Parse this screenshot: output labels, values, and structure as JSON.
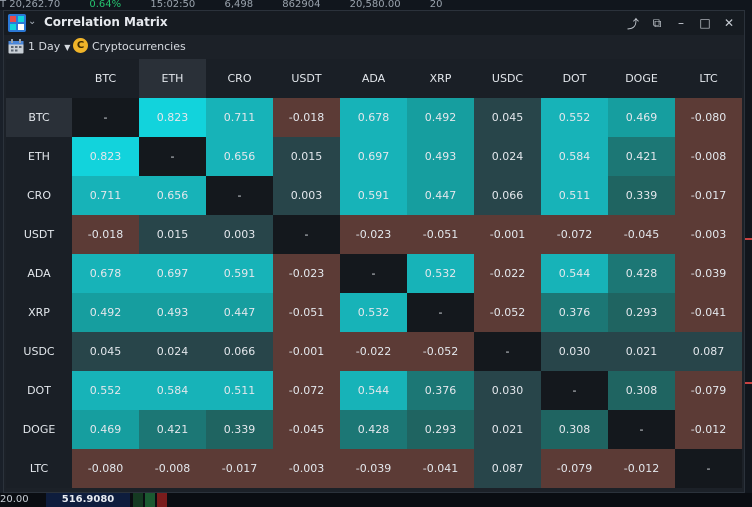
{
  "background": {
    "ticker_fragments": [
      "T 20,262.70",
      "0.64%",
      "15:02:50",
      "6,498",
      "862904",
      "20,580.00",
      "20"
    ],
    "bottom_left": "20.00",
    "bottom_price": "516.9080"
  },
  "window": {
    "title": "Correlation Matrix",
    "controls": {
      "share_symbol": "⤴",
      "popout_symbol": "⧉",
      "minimize_symbol": "–",
      "maximize_symbol": "□",
      "close_symbol": "✕"
    }
  },
  "toolbar": {
    "period": "1 Day",
    "category": "Cryptocurrencies",
    "coin_symbol": "C"
  },
  "matrix": {
    "highlight_column": "ETH",
    "highlight_row": "BTC",
    "assets": [
      "BTC",
      "ETH",
      "CRO",
      "USDT",
      "ADA",
      "XRP",
      "USDC",
      "DOT",
      "DOGE",
      "LTC"
    ],
    "values": [
      [
        "-",
        "0.823",
        "0.711",
        "-0.018",
        "0.678",
        "0.492",
        "0.045",
        "0.552",
        "0.469",
        "-0.080"
      ],
      [
        "0.823",
        "-",
        "0.656",
        "0.015",
        "0.697",
        "0.493",
        "0.024",
        "0.584",
        "0.421",
        "-0.008"
      ],
      [
        "0.711",
        "0.656",
        "-",
        "0.003",
        "0.591",
        "0.447",
        "0.066",
        "0.511",
        "0.339",
        "-0.017"
      ],
      [
        "-0.018",
        "0.015",
        "0.003",
        "-",
        "-0.023",
        "-0.051",
        "-0.001",
        "-0.072",
        "-0.045",
        "-0.003"
      ],
      [
        "0.678",
        "0.697",
        "0.591",
        "-0.023",
        "-",
        "0.532",
        "-0.022",
        "0.544",
        "0.428",
        "-0.039"
      ],
      [
        "0.492",
        "0.493",
        "0.447",
        "-0.051",
        "0.532",
        "-",
        "-0.052",
        "0.376",
        "0.293",
        "-0.041"
      ],
      [
        "0.045",
        "0.024",
        "0.066",
        "-0.001",
        "-0.022",
        "-0.052",
        "-",
        "0.030",
        "0.021",
        "0.087"
      ],
      [
        "0.552",
        "0.584",
        "0.511",
        "-0.072",
        "0.544",
        "0.376",
        "0.030",
        "-",
        "0.308",
        "-0.079"
      ],
      [
        "0.469",
        "0.421",
        "0.339",
        "-0.045",
        "0.428",
        "0.293",
        "0.021",
        "0.308",
        "-",
        "-0.012"
      ],
      [
        "-0.080",
        "-0.008",
        "-0.017",
        "-0.003",
        "-0.039",
        "-0.041",
        "0.087",
        "-0.079",
        "-0.012",
        "-"
      ]
    ],
    "colors": {
      "diagonal": "#14181d",
      "negative": "#5c3b36",
      "very_high": "#12d3dc",
      "high": "#17b3b8",
      "mid": "#169e9f",
      "low_mid": "#1c7775",
      "low": "#1f6461",
      "near_zero": "#28454a"
    }
  }
}
